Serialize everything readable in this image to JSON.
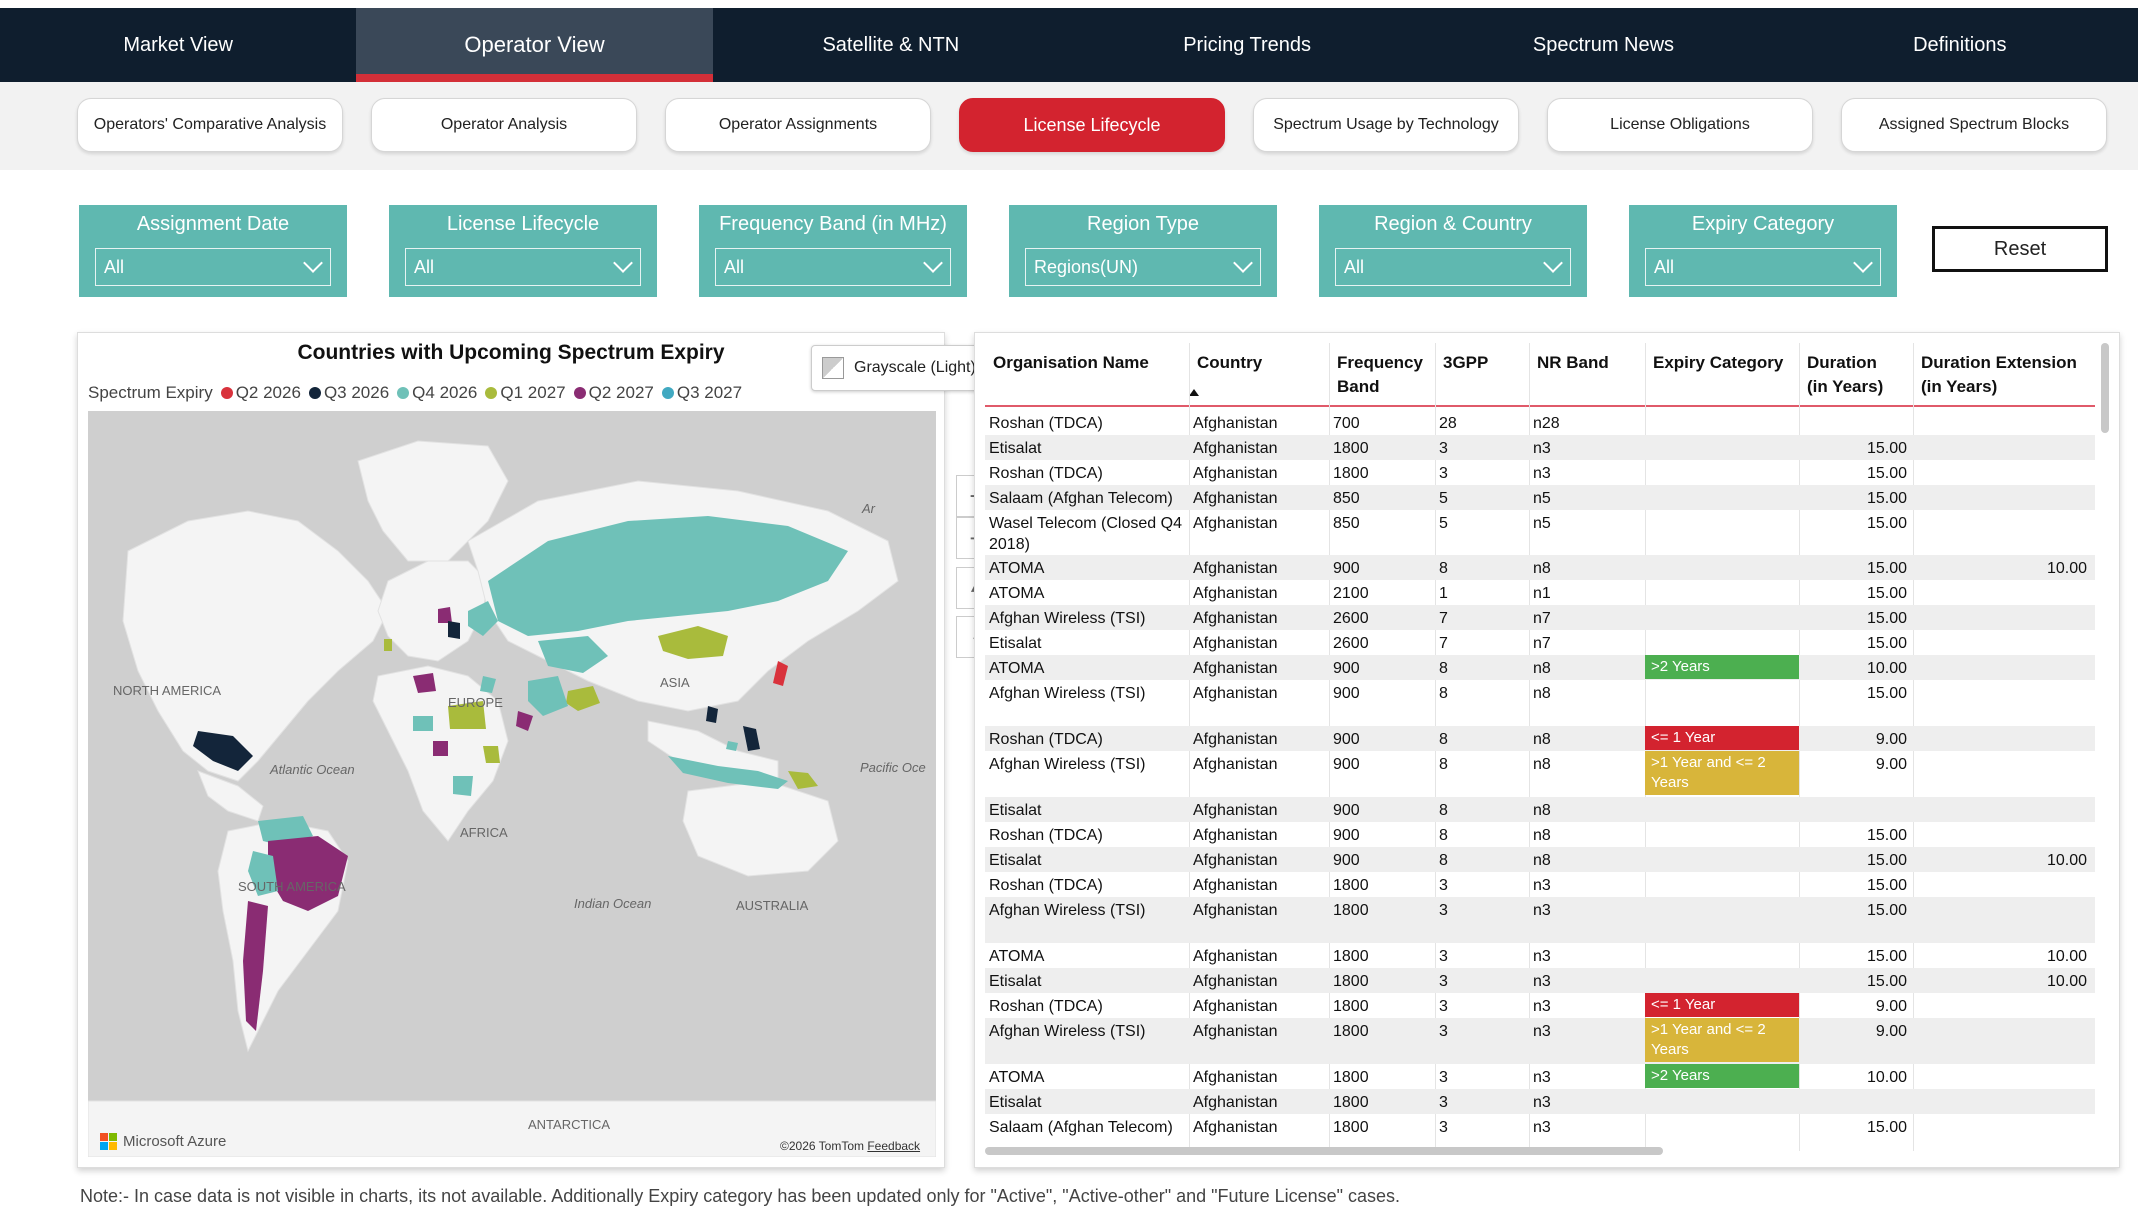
{
  "nav": {
    "tabs": [
      {
        "label": "Market View"
      },
      {
        "label": "Operator View"
      },
      {
        "label": "Satellite & NTN"
      },
      {
        "label": "Pricing Trends"
      },
      {
        "label": "Spectrum News"
      },
      {
        "label": "Definitions"
      }
    ],
    "active_index": 1
  },
  "subnav": {
    "buttons": [
      {
        "label": "Operators' Comparative Analysis"
      },
      {
        "label": "Operator Analysis"
      },
      {
        "label": "Operator Assignments"
      },
      {
        "label": "License Lifecycle"
      },
      {
        "label": "Spectrum Usage by Technology"
      },
      {
        "label": "License Obligations"
      },
      {
        "label": "Assigned Spectrum Blocks"
      }
    ],
    "active_index": 3
  },
  "filters": [
    {
      "title": "Assignment Date",
      "value": "All"
    },
    {
      "title": "License Lifecycle",
      "value": "All"
    },
    {
      "title": "Frequency Band (in MHz)",
      "value": "All"
    },
    {
      "title": "Region Type",
      "value": "Regions(UN)"
    },
    {
      "title": "Region & Country",
      "value": "All"
    },
    {
      "title": "Expiry Category",
      "value": "All"
    }
  ],
  "reset_label": "Reset",
  "map": {
    "title": "Countries with Upcoming Spectrum Expiry",
    "legend_title": "Spectrum Expiry",
    "legend": [
      {
        "label": "Q2 2026",
        "color": "#d9323c"
      },
      {
        "label": "Q3 2026",
        "color": "#13253a"
      },
      {
        "label": "Q4 2026",
        "color": "#6fc1b8"
      },
      {
        "label": "Q1 2027",
        "color": "#a9bb3c"
      },
      {
        "label": "Q2 2027",
        "color": "#8a2c73"
      },
      {
        "label": "Q3 2027",
        "color": "#41a9c1"
      }
    ],
    "style_button": "Grayscale (Light)",
    "labels": {
      "north_america": "NORTH AMERICA",
      "south_america": "SOUTH AMERICA",
      "europe": "EUROPE",
      "africa": "AFRICA",
      "asia": "ASIA",
      "australia": "AUSTRALIA",
      "antarctica": "ANTARCTICA",
      "atlantic": "Atlantic Ocean",
      "pacific": "Pacific Oce",
      "indian": "Indian Ocean",
      "arctic": "Ar"
    },
    "footer_brand": "Microsoft Azure",
    "footer_copyright": "©2026 TomTom",
    "footer_feedback": "Feedback"
  },
  "table": {
    "headers": [
      {
        "l1": "Organisation Name",
        "l2": ""
      },
      {
        "l1": "Country",
        "l2": ""
      },
      {
        "l1": "Frequency",
        "l2": "Band"
      },
      {
        "l1": "3GPP",
        "l2": ""
      },
      {
        "l1": "NR Band",
        "l2": ""
      },
      {
        "l1": "Expiry Category",
        "l2": ""
      },
      {
        "l1": "Duration",
        "l2": "(in Years)"
      },
      {
        "l1": "Duration Extension",
        "l2": "(in Years)"
      }
    ],
    "rows": [
      {
        "org": "Roshan (TDCA)",
        "country": "Afghanistan",
        "freq": "700",
        "gpp": "28",
        "nr": "n28",
        "expiry": "",
        "dur": "",
        "ext": ""
      },
      {
        "org": "Etisalat",
        "country": "Afghanistan",
        "freq": "1800",
        "gpp": "3",
        "nr": "n3",
        "expiry": "",
        "dur": "15.00",
        "ext": ""
      },
      {
        "org": "Roshan (TDCA)",
        "country": "Afghanistan",
        "freq": "1800",
        "gpp": "3",
        "nr": "n3",
        "expiry": "",
        "dur": "15.00",
        "ext": ""
      },
      {
        "org": "Salaam (Afghan Telecom)",
        "country": "Afghanistan",
        "freq": "850",
        "gpp": "5",
        "nr": "n5",
        "expiry": "",
        "dur": "15.00",
        "ext": ""
      },
      {
        "org": "Wasel Telecom (Closed Q4 2018)",
        "country": "Afghanistan",
        "freq": "850",
        "gpp": "5",
        "nr": "n5",
        "expiry": "",
        "dur": "15.00",
        "ext": ""
      },
      {
        "org": "ATOMA",
        "country": "Afghanistan",
        "freq": "900",
        "gpp": "8",
        "nr": "n8",
        "expiry": "",
        "dur": "15.00",
        "ext": "10.00"
      },
      {
        "org": "ATOMA",
        "country": "Afghanistan",
        "freq": "2100",
        "gpp": "1",
        "nr": "n1",
        "expiry": "",
        "dur": "15.00",
        "ext": ""
      },
      {
        "org": "Afghan Wireless (TSI)",
        "country": "Afghanistan",
        "freq": "2600",
        "gpp": "7",
        "nr": "n7",
        "expiry": "",
        "dur": "15.00",
        "ext": ""
      },
      {
        "org": "Etisalat",
        "country": "Afghanistan",
        "freq": "2600",
        "gpp": "7",
        "nr": "n7",
        "expiry": "",
        "dur": "15.00",
        "ext": ""
      },
      {
        "org": "ATOMA",
        "country": "Afghanistan",
        "freq": "900",
        "gpp": "8",
        "nr": "n8",
        "expiry": ">2 Years",
        "dur": "10.00",
        "ext": ""
      },
      {
        "org": "Afghan Wireless (TSI)",
        "country": "Afghanistan",
        "freq": "900",
        "gpp": "8",
        "nr": "n8",
        "expiry": "",
        "dur": "15.00",
        "ext": ""
      },
      {
        "org": "Roshan (TDCA)",
        "country": "Afghanistan",
        "freq": "900",
        "gpp": "8",
        "nr": "n8",
        "expiry": "<= 1 Year",
        "dur": "9.00",
        "ext": ""
      },
      {
        "org": "Afghan Wireless (TSI)",
        "country": "Afghanistan",
        "freq": "900",
        "gpp": "8",
        "nr": "n8",
        "expiry": ">1 Year and <= 2 Years",
        "dur": "9.00",
        "ext": ""
      },
      {
        "org": "Etisalat",
        "country": "Afghanistan",
        "freq": "900",
        "gpp": "8",
        "nr": "n8",
        "expiry": "",
        "dur": "",
        "ext": ""
      },
      {
        "org": "Roshan (TDCA)",
        "country": "Afghanistan",
        "freq": "900",
        "gpp": "8",
        "nr": "n8",
        "expiry": "",
        "dur": "15.00",
        "ext": ""
      },
      {
        "org": "Etisalat",
        "country": "Afghanistan",
        "freq": "900",
        "gpp": "8",
        "nr": "n8",
        "expiry": "",
        "dur": "15.00",
        "ext": "10.00"
      },
      {
        "org": "Roshan (TDCA)",
        "country": "Afghanistan",
        "freq": "1800",
        "gpp": "3",
        "nr": "n3",
        "expiry": "",
        "dur": "15.00",
        "ext": ""
      },
      {
        "org": "Afghan Wireless (TSI)",
        "country": "Afghanistan",
        "freq": "1800",
        "gpp": "3",
        "nr": "n3",
        "expiry": "",
        "dur": "15.00",
        "ext": ""
      },
      {
        "org": "ATOMA",
        "country": "Afghanistan",
        "freq": "1800",
        "gpp": "3",
        "nr": "n3",
        "expiry": "",
        "dur": "15.00",
        "ext": "10.00"
      },
      {
        "org": "Etisalat",
        "country": "Afghanistan",
        "freq": "1800",
        "gpp": "3",
        "nr": "n3",
        "expiry": "",
        "dur": "15.00",
        "ext": "10.00"
      },
      {
        "org": "Roshan (TDCA)",
        "country": "Afghanistan",
        "freq": "1800",
        "gpp": "3",
        "nr": "n3",
        "expiry": "<= 1 Year",
        "dur": "9.00",
        "ext": ""
      },
      {
        "org": "Afghan Wireless (TSI)",
        "country": "Afghanistan",
        "freq": "1800",
        "gpp": "3",
        "nr": "n3",
        "expiry": ">1 Year and <= 2 Years",
        "dur": "9.00",
        "ext": ""
      },
      {
        "org": "ATOMA",
        "country": "Afghanistan",
        "freq": "1800",
        "gpp": "3",
        "nr": "n3",
        "expiry": ">2 Years",
        "dur": "10.00",
        "ext": ""
      },
      {
        "org": "Etisalat",
        "country": "Afghanistan",
        "freq": "1800",
        "gpp": "3",
        "nr": "n3",
        "expiry": "",
        "dur": "",
        "ext": ""
      },
      {
        "org": "Salaam (Afghan Telecom)",
        "country": "Afghanistan",
        "freq": "1800",
        "gpp": "3",
        "nr": "n3",
        "expiry": "",
        "dur": "15.00",
        "ext": ""
      }
    ],
    "expiry_colors": {
      ">2 Years": "#4caf50",
      "<= 1 Year": "#d3232f",
      ">1 Year and <= 2 Years": "#d8b53a"
    }
  },
  "note": "Note:- In case data is not visible in charts, its not available. Additionally Expiry category has been updated only for \"Active\", \"Active-other\" and \"Future License\" cases."
}
